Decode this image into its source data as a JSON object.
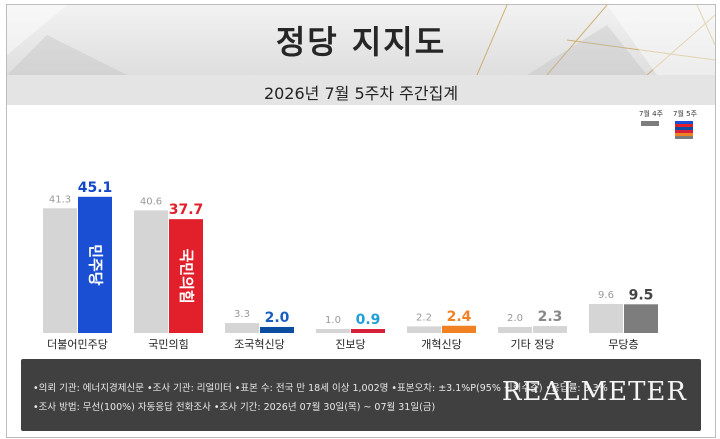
{
  "title": "정당 지지도",
  "subtitle": "2026년 7월 5주차 주간집계",
  "legend": {
    "prev": "7월 4주",
    "curr": "7월 5주"
  },
  "chart_data": {
    "type": "bar",
    "categories": [
      "더불어민주당",
      "국민의힘",
      "조국혁신당",
      "진보당",
      "개혁신당",
      "기타 정당",
      "무당층"
    ],
    "series": [
      {
        "name": "7월 4주",
        "values": [
          41.3,
          40.6,
          3.3,
          1.0,
          2.2,
          2.0,
          9.6
        ],
        "labels": [
          "41.3",
          "40.6",
          "3.3",
          "1.0",
          "2.2",
          "2.0",
          "9.6"
        ]
      },
      {
        "name": "7월 5주",
        "values": [
          45.1,
          37.7,
          2.0,
          0.9,
          2.4,
          2.3,
          9.5
        ],
        "labels": [
          "45.1",
          "37.7",
          "2.0",
          "0.9",
          "2.4",
          "2.3",
          "9.5"
        ]
      }
    ],
    "colors": {
      "prev": "#d5d5d5",
      "curr": [
        "#1a4fd3",
        "#e2202c",
        "#0c4da2",
        "#d6203c",
        "#f08224",
        "#d5d5d5",
        "#7d7d7d"
      ],
      "curr_label": [
        "#1347c8",
        "#e2202c",
        "#1a5fc0",
        "#1f9fd6",
        "#f08224",
        "#888888",
        "#444444"
      ]
    },
    "bar_logos": [
      "민주당",
      "국민의힘"
    ],
    "xlabel": "",
    "ylabel": ""
  },
  "footer": {
    "line1": "•의뢰 기관: 에너지경제신문 •조사 기관: 리얼미터 •표본 수: 전국 만 18세 이상 1,002명 •표본오차: ±3.1%P(95% 신뢰수준) •응답률: 3.3%",
    "line2": "•조사 방법: 무선(100%) 자동응답 전화조사 •조사 기간: 2026년 07월 30일(목) ~ 07월 31일(금)",
    "brand": "REALMETER"
  }
}
